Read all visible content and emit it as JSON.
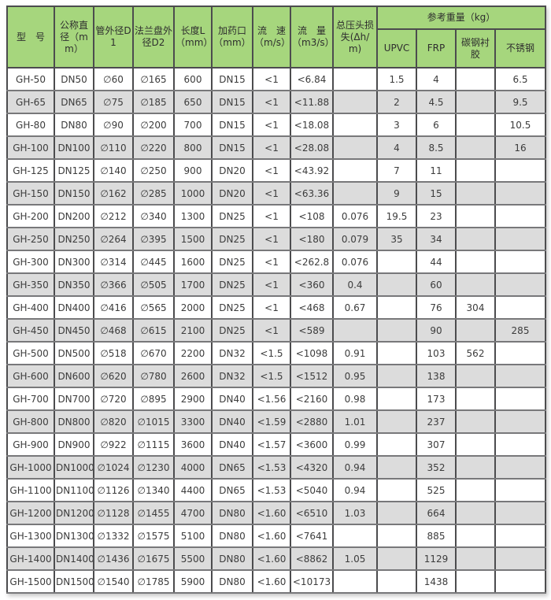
{
  "colors": {
    "header_bg": "#a6d67d",
    "row_bg": "#ffffff",
    "row_alt_bg": "#dcdcdc",
    "border_dark": "#4c4c4e",
    "border_row": "#78787a",
    "text": "#3c3c3c"
  },
  "table": {
    "group_header": {
      "weight": "参考重量（kg）"
    },
    "headers": {
      "model": "型　号",
      "dn": "公称直径（mm）",
      "d1": "管外径D1",
      "d2": "法兰盘外径D2",
      "length": "长度L（mm）",
      "port": "加药口（mm）",
      "velocity": "流　速（m/s）",
      "flow": "流　量（m3/s）",
      "headloss": "总压头损失(Δh/m)",
      "upvc": "UPVC",
      "frp": "FRP",
      "cs_rubber": "碳钢衬胶",
      "ss": "不锈钢"
    },
    "column_keys": [
      "model",
      "dn",
      "d1",
      "d2",
      "length",
      "port",
      "velocity",
      "flow",
      "headloss",
      "upvc",
      "frp",
      "cs_rubber",
      "ss"
    ],
    "rows": [
      [
        "GH-50",
        "DN50",
        "∅60",
        "∅165",
        "600",
        "DN15",
        "<1",
        "<6.84",
        "",
        "1.5",
        "4",
        "",
        "6.5"
      ],
      [
        "GH-65",
        "DN65",
        "∅75",
        "∅185",
        "650",
        "DN15",
        "<1",
        "<11.88",
        "",
        "2",
        "4.5",
        "",
        "9.5"
      ],
      [
        "GH-80",
        "DN80",
        "∅90",
        "∅200",
        "700",
        "DN15",
        "<1",
        "<18.08",
        "",
        "3",
        "6",
        "",
        "10.5"
      ],
      [
        "GH-100",
        "DN100",
        "∅110",
        "∅220",
        "800",
        "DN15",
        "<1",
        "<28.08",
        "",
        "4",
        "8.5",
        "",
        "16"
      ],
      [
        "GH-125",
        "DN125",
        "∅140",
        "∅250",
        "900",
        "DN20",
        "<1",
        "<43.92",
        "",
        "7",
        "11",
        "",
        ""
      ],
      [
        "GH-150",
        "DN150",
        "∅162",
        "∅285",
        "1000",
        "DN20",
        "<1",
        "<63.36",
        "",
        "9",
        "15",
        "",
        ""
      ],
      [
        "GH-200",
        "DN200",
        "∅212",
        "∅340",
        "1300",
        "DN25",
        "<1",
        "<108",
        "0.076",
        "19.5",
        "23",
        "",
        ""
      ],
      [
        "GH-250",
        "DN250",
        "∅264",
        "∅395",
        "1500",
        "DN25",
        "<1",
        "<180",
        "0.079",
        "35",
        "34",
        "",
        ""
      ],
      [
        "GH-300",
        "DN300",
        "∅314",
        "∅445",
        "1600",
        "DN25",
        "<1",
        "<262.8",
        "0.076",
        "",
        "44",
        "",
        ""
      ],
      [
        "GH-350",
        "DN350",
        "∅366",
        "∅505",
        "1700",
        "DN25",
        "<1",
        "<360",
        "0.4",
        "",
        "60",
        "",
        ""
      ],
      [
        "GH-400",
        "DN400",
        "∅416",
        "∅565",
        "2000",
        "DN25",
        "<1",
        "<468",
        "0.67",
        "",
        "76",
        "304",
        ""
      ],
      [
        "GH-450",
        "DN450",
        "∅468",
        "∅615",
        "2100",
        "DN25",
        "<1",
        "<589",
        "",
        "",
        "90",
        "",
        "285"
      ],
      [
        "GH-500",
        "DN500",
        "∅518",
        "∅670",
        "2200",
        "DN32",
        "<1.5",
        "<1098",
        "0.91",
        "",
        "103",
        "562",
        ""
      ],
      [
        "GH-600",
        "DN600",
        "∅620",
        "∅780",
        "2600",
        "DN32",
        "<1.5",
        "<1512",
        "0.95",
        "",
        "138",
        "",
        ""
      ],
      [
        "GH-700",
        "DN700",
        "∅720",
        "∅895",
        "2900",
        "DN40",
        "<1.56",
        "<2160",
        "0.98",
        "",
        "173",
        "",
        ""
      ],
      [
        "GH-800",
        "DN800",
        "∅820",
        "∅1015",
        "3300",
        "DN40",
        "<1.59",
        "<2880",
        "1.01",
        "",
        "237",
        "",
        ""
      ],
      [
        "GH-900",
        "DN900",
        "∅922",
        "∅1115",
        "3600",
        "DN40",
        "<1.57",
        "<3600",
        "0.99",
        "",
        "307",
        "",
        ""
      ],
      [
        "GH-1000",
        "DN1000",
        "∅1024",
        "∅1230",
        "4000",
        "DN65",
        "<1.53",
        "<4320",
        "0.94",
        "",
        "352",
        "",
        ""
      ],
      [
        "GH-1100",
        "DN1100",
        "∅1126",
        "∅1340",
        "4400",
        "DN65",
        "<1.53",
        "<5040",
        "0.94",
        "",
        "525",
        "",
        ""
      ],
      [
        "GH-1200",
        "DN1200",
        "∅1128",
        "∅1455",
        "4700",
        "DN80",
        "<1.60",
        "<6510",
        "1.03",
        "",
        "664",
        "",
        ""
      ],
      [
        "GH-1300",
        "DN1300",
        "∅1332",
        "∅1575",
        "5100",
        "DN80",
        "<1.60",
        "<7641",
        "",
        "",
        "885",
        "",
        ""
      ],
      [
        "GH-1400",
        "DN1400",
        "∅1436",
        "∅1675",
        "5500",
        "DN80",
        "<1.60",
        "<8862",
        "1.05",
        "",
        "1129",
        "",
        ""
      ],
      [
        "GH-1500",
        "DN1500",
        "∅1540",
        "∅1785",
        "5900",
        "DN80",
        "<1.60",
        "<10173",
        "",
        "",
        "1438",
        "",
        ""
      ]
    ]
  }
}
